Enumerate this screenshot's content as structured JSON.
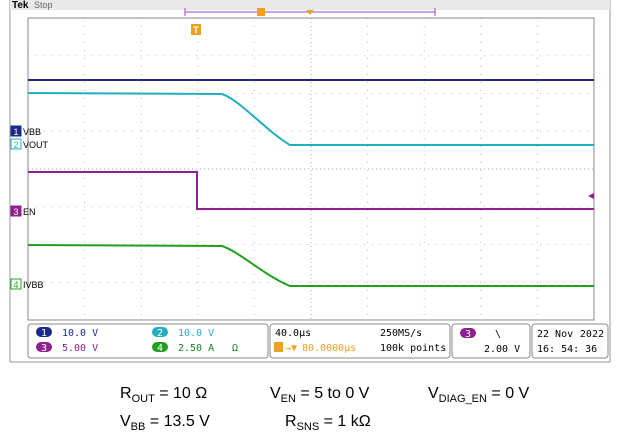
{
  "header": {
    "brand": "Tek",
    "state": "Stop"
  },
  "channels": [
    {
      "number": "1",
      "label": "VBB",
      "scale": "10.0 V"
    },
    {
      "number": "2",
      "label": "VOUT",
      "scale": "10.0 V"
    },
    {
      "number": "3",
      "label": "EN",
      "scale": "5.00 V"
    },
    {
      "number": "4",
      "label": "IVBB",
      "scale": "2.50 A",
      "unit_note": "Ω"
    }
  ],
  "trigger_marker": "T",
  "status": {
    "timebase": "40.0μs",
    "sample_rate": "250MS/s",
    "delay": "80.0000μs",
    "record_length": "100k points",
    "trigger_source": "3",
    "trigger_slope": "\\",
    "trigger_level": "2.00 V",
    "date": "22 Nov",
    "year": "2022",
    "time": "16: 54: 36"
  },
  "caption": [
    [
      {
        "base": "R",
        "sub": "OUT",
        "rest": " = 10 Ω"
      },
      {
        "base": "V",
        "sub": "EN",
        "rest": " = 5 to 0 V"
      },
      {
        "base": "V",
        "sub": "DIAG_EN",
        "rest": " = 0 V"
      }
    ],
    [
      {
        "base": "V",
        "sub": "BB",
        "rest": " = 13.5 V"
      },
      {
        "base": "R",
        "sub": "SNS",
        "rest": " = 1 kΩ"
      }
    ]
  ]
}
